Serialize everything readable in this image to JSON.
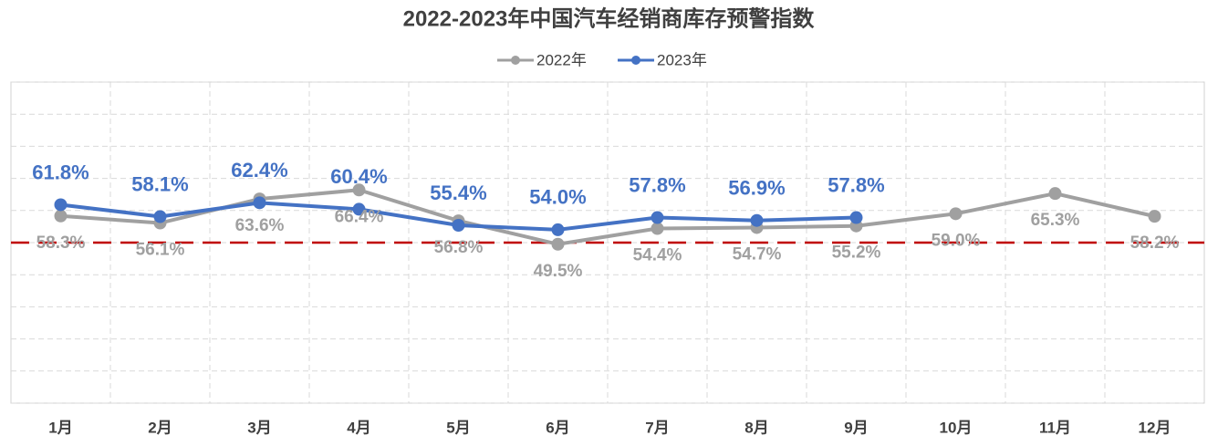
{
  "chart_data": {
    "type": "line",
    "title": "2022-2023年中国汽车经销商库存预警指数",
    "categories": [
      "1月",
      "2月",
      "3月",
      "4月",
      "5月",
      "6月",
      "7月",
      "8月",
      "9月",
      "10月",
      "11月",
      "12月"
    ],
    "series": [
      {
        "name": "2022年",
        "color": "#a0a0a0",
        "values": [
          58.3,
          56.1,
          63.6,
          66.4,
          56.8,
          49.5,
          54.4,
          54.7,
          55.2,
          59.0,
          65.3,
          58.2
        ],
        "value_labels": [
          "58.3%",
          "56.1%",
          "63.6%",
          "66.4%",
          "56.8%",
          "49.5%",
          "54.4%",
          "54.7%",
          "55.2%",
          "59.0%",
          "65.3%",
          "58.2%"
        ]
      },
      {
        "name": "2023年",
        "color": "#4472c4",
        "values": [
          61.8,
          58.1,
          62.4,
          60.4,
          55.4,
          54.0,
          57.8,
          56.9,
          57.8,
          null,
          null,
          null
        ],
        "value_labels": [
          "61.8%",
          "58.1%",
          "62.4%",
          "60.4%",
          "55.4%",
          "54.0%",
          "57.8%",
          "56.9%",
          "57.8%",
          null,
          null,
          null
        ]
      }
    ],
    "ylim": [
      0,
      100
    ],
    "yticks": [
      0,
      10,
      20,
      30,
      40,
      50,
      60,
      70,
      80,
      90,
      100
    ],
    "grid": true,
    "threshold": 50,
    "threshold_color": "#c00000",
    "legend": "top"
  }
}
